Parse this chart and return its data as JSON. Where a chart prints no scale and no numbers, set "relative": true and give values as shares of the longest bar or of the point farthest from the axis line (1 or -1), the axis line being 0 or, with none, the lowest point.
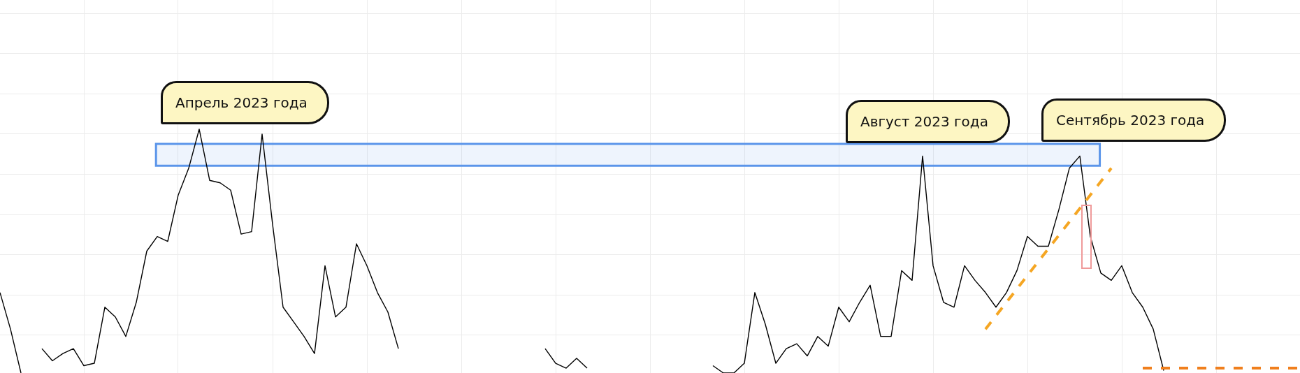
{
  "chart_data": {
    "type": "line",
    "relative": true,
    "grid": true,
    "legend": false,
    "marker": "none",
    "categories": [
      null,
      null,
      null,
      null,
      null,
      null,
      null,
      null,
      null,
      null,
      null,
      null,
      null,
      null,
      null,
      null,
      null,
      null,
      null,
      null,
      null,
      null,
      null,
      null,
      null,
      null,
      null,
      null,
      null,
      null,
      null,
      null,
      null,
      null,
      null,
      null,
      null,
      null,
      null,
      null,
      null,
      null,
      null,
      null,
      null,
      null,
      null,
      null,
      null,
      null,
      null,
      null,
      null,
      null,
      null,
      null,
      null,
      null,
      null,
      null,
      null,
      null,
      null,
      null,
      null,
      null,
      null,
      null,
      null,
      null,
      null,
      null,
      null,
      null,
      null,
      null,
      null,
      null,
      null,
      null,
      null,
      null,
      null,
      null,
      null,
      null,
      null,
      null,
      null,
      null,
      null,
      null,
      null,
      null,
      null,
      null,
      null,
      null,
      null,
      null,
      null,
      null,
      null,
      null,
      null,
      null,
      null,
      null,
      null,
      null,
      null,
      null,
      null,
      null,
      null,
      null,
      null,
      null,
      null,
      null,
      null,
      null,
      null,
      null,
      null
    ],
    "series": [
      {
        "color": "#000000",
        "values": [
          0.33,
          0.18,
          0,
          null,
          0.1,
          0.05,
          0.08,
          0.1,
          0.03,
          0.04,
          0.27,
          0.23,
          0.15,
          0.29,
          0.5,
          0.56,
          0.54,
          0.73,
          0.84,
          1,
          0.79,
          0.78,
          0.75,
          0.57,
          0.58,
          0.98,
          0.61,
          0.27,
          0.21,
          0.15,
          0.08,
          0.44,
          0.23,
          0.27,
          0.53,
          0.44,
          0.33,
          0.25,
          0.1,
          null,
          null,
          null,
          null,
          null,
          null,
          null,
          null,
          null,
          null,
          null,
          null,
          null,
          0.1,
          0.04,
          0.02,
          0.06,
          0.02,
          null,
          null,
          null,
          null,
          null,
          null,
          null,
          null,
          null,
          null,
          null,
          0.03,
          0,
          0,
          0.04,
          0.33,
          0.2,
          0.04,
          0.1,
          0.12,
          0.07,
          0.15,
          0.11,
          0.27,
          0.21,
          0.29,
          0.36,
          0.15,
          0.15,
          0.42,
          0.38,
          0.89,
          0.44,
          0.29,
          0.27,
          0.44,
          0.38,
          0.33,
          0.27,
          0.33,
          0.42,
          0.56,
          0.52,
          0.52,
          0.67,
          0.84,
          0.89,
          0.56,
          0.41,
          0.38,
          0.44,
          0.33,
          0.27,
          0.18,
          0.01,
          null,
          null,
          null,
          null,
          null,
          null,
          null,
          null,
          null,
          null,
          null,
          null,
          null
        ]
      },
      {
        "color": "#f5a623",
        "line_style": "dashed",
        "values": [
          null,
          null,
          null,
          null,
          null,
          null,
          null,
          null,
          null,
          null,
          null,
          null,
          null,
          null,
          null,
          null,
          null,
          null,
          null,
          null,
          null,
          null,
          null,
          null,
          null,
          null,
          null,
          null,
          null,
          null,
          null,
          null,
          null,
          null,
          null,
          null,
          null,
          null,
          null,
          null,
          null,
          null,
          null,
          null,
          null,
          null,
          null,
          null,
          null,
          null,
          null,
          null,
          null,
          null,
          null,
          null,
          null,
          null,
          null,
          null,
          null,
          null,
          null,
          null,
          null,
          null,
          null,
          null,
          null,
          null,
          null,
          null,
          null,
          null,
          null,
          null,
          null,
          null,
          null,
          null,
          null,
          null,
          null,
          null,
          null,
          null,
          null,
          null,
          null,
          null,
          null,
          null,
          null,
          null,
          0.18,
          null,
          null,
          null,
          null,
          null,
          null,
          null,
          null,
          null,
          null,
          null,
          0.84,
          null,
          null,
          null,
          null,
          null,
          null,
          null,
          null,
          null,
          null,
          null,
          null,
          null,
          null,
          null,
          null,
          null,
          null
        ]
      },
      {
        "color": "#f07f1d",
        "line_style": "dashed",
        "values": [
          null,
          null,
          null,
          null,
          null,
          null,
          null,
          null,
          null,
          null,
          null,
          null,
          null,
          null,
          null,
          null,
          null,
          null,
          null,
          null,
          null,
          null,
          null,
          null,
          null,
          null,
          null,
          null,
          null,
          null,
          null,
          null,
          null,
          null,
          null,
          null,
          null,
          null,
          null,
          null,
          null,
          null,
          null,
          null,
          null,
          null,
          null,
          null,
          null,
          null,
          null,
          null,
          null,
          null,
          null,
          null,
          null,
          null,
          null,
          null,
          null,
          null,
          null,
          null,
          null,
          null,
          null,
          null,
          null,
          null,
          null,
          null,
          null,
          null,
          null,
          null,
          null,
          null,
          null,
          null,
          null,
          null,
          null,
          null,
          null,
          null,
          null,
          null,
          null,
          null,
          null,
          null,
          null,
          null,
          null,
          null,
          null,
          null,
          null,
          null,
          null,
          null,
          null,
          null,
          null,
          null,
          null,
          null,
          null,
          0.02,
          null,
          null,
          null,
          null,
          null,
          null,
          null,
          null,
          null,
          null,
          null,
          null,
          null,
          null,
          0.02
        ]
      }
    ],
    "bands": [
      {
        "axis": "y",
        "from": 0.85,
        "to": 0.94,
        "color": "#5b95ea"
      }
    ],
    "annotations": [
      "Апрель 2023 года",
      "Август 2023 года",
      "Сентябрь 2023 года"
    ]
  }
}
